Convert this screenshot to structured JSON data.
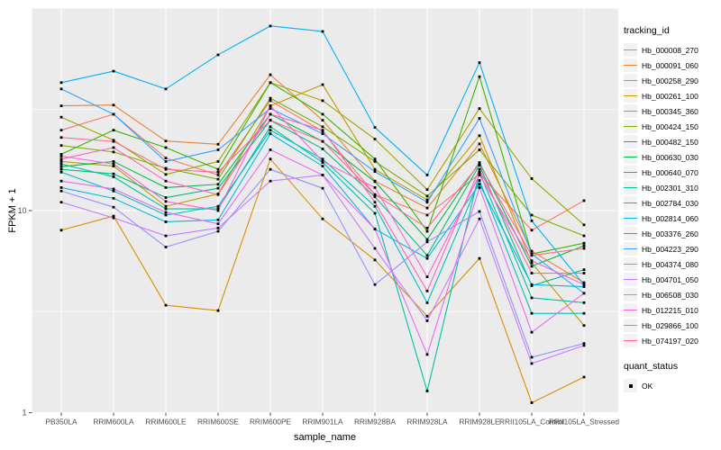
{
  "chart_data": {
    "type": "line",
    "title": "",
    "xlabel": "sample_name",
    "ylabel": "FPKM + 1",
    "y_scale": "log10",
    "ylim": [
      1,
      100
    ],
    "y_ticks": [
      10,
      1
    ],
    "y_minor_ticks": [
      3.162,
      31.62
    ],
    "grid": "on",
    "panel_bg": "#EBEBEB",
    "grid_color": "#FFFFFF",
    "tick_label_color": "#4D4D4D",
    "marker": "black-square",
    "legend_title": "tracking_id",
    "legend_position": "right",
    "x_categories": [
      "PB350LA",
      "RRIM600LA",
      "RRIM600LE",
      "RRIM600SE",
      "RRIM600PE",
      "RRIM901LA",
      "RRIM928BA",
      "RRIM928LA",
      "RRIM928LE",
      "RRII105LA_Control",
      "RRII105LA_Stressed"
    ],
    "series": [
      {
        "name": "Hb_000008_270",
        "color": "#F8766D",
        "values": [
          25,
          30,
          18.2,
          15,
          35,
          24.7,
          12,
          9.5,
          15.2,
          8.0,
          11.2
        ]
      },
      {
        "name": "Hb_000091_060",
        "color": "#EA8331",
        "values": [
          33,
          33.3,
          22.1,
          21.3,
          47,
          28,
          14,
          10.3,
          21.4,
          6.3,
          4.4
        ]
      },
      {
        "name": "Hb_000258_290",
        "color": "#D89000",
        "values": [
          8.0,
          9.4,
          3.4,
          3.2,
          18,
          9.1,
          5.7,
          3.0,
          5.8,
          1.12,
          1.5
        ]
      },
      {
        "name": "Hb_000261_100",
        "color": "#C09B00",
        "values": [
          17.5,
          16.6,
          10.5,
          12.1,
          33,
          42,
          16,
          11.3,
          23.5,
          5.5,
          2.7
        ]
      },
      {
        "name": "Hb_000345_360",
        "color": "#A3A500",
        "values": [
          29,
          22.3,
          15.1,
          17.5,
          43,
          35,
          22.6,
          12.7,
          32,
          14.4,
          8.5
        ]
      },
      {
        "name": "Hb_000424_150",
        "color": "#7CAE00",
        "values": [
          21,
          19.5,
          16.2,
          14.3,
          36,
          26,
          17.5,
          11.8,
          20,
          9.5,
          7.5
        ]
      },
      {
        "name": "Hb_000482_150",
        "color": "#39B600",
        "values": [
          19,
          25,
          20.5,
          16,
          43,
          30,
          18,
          7.9,
          46,
          6.1,
          6.9
        ]
      },
      {
        "name": "Hb_000630_030",
        "color": "#00BB4E",
        "values": [
          16.5,
          17.5,
          13,
          13.5,
          30,
          22,
          13.9,
          7.2,
          17.3,
          5.3,
          6.7
        ]
      },
      {
        "name": "Hb_000640_070",
        "color": "#00BF7D",
        "values": [
          16,
          15.2,
          11.6,
          12.9,
          28,
          20.2,
          11.7,
          6.0,
          16.8,
          4.25,
          5.1
        ]
      },
      {
        "name": "Hb_002301_310",
        "color": "#00C1A3",
        "values": [
          17,
          14.7,
          10.2,
          10.2,
          26,
          17.3,
          9.7,
          1.28,
          15.5,
          3.7,
          3.5
        ]
      },
      {
        "name": "Hb_002784_030",
        "color": "#00BFC4",
        "values": [
          15.5,
          12.5,
          9.5,
          10.5,
          25,
          18,
          10.5,
          3.5,
          14.1,
          3.1,
          3.1
        ]
      },
      {
        "name": "Hb_002814_060",
        "color": "#00BAE0",
        "values": [
          13,
          11.5,
          8.8,
          9.0,
          24,
          16.6,
          8.1,
          5.8,
          13.5,
          4.3,
          4.2
        ]
      },
      {
        "name": "Hb_003376_260",
        "color": "#00B0F6",
        "values": [
          43,
          49,
          40,
          59,
          82,
          77,
          25.8,
          15,
          54,
          8.9,
          4.3
        ]
      },
      {
        "name": "Hb_004223_290",
        "color": "#35A2FF",
        "values": [
          40,
          30,
          17.5,
          20,
          32,
          24,
          15.6,
          11.0,
          28.6,
          6.1,
          3.9
        ]
      },
      {
        "name": "Hb_004374_080",
        "color": "#9590FF",
        "values": [
          12.5,
          10.4,
          6.6,
          7.9,
          16,
          12.9,
          4.3,
          7.0,
          9.9,
          1.88,
          2.2
        ]
      },
      {
        "name": "Hb_004701_050",
        "color": "#C77CFF",
        "values": [
          11,
          9.2,
          7.5,
          8.2,
          14,
          15,
          6.5,
          2.85,
          9.1,
          1.75,
          2.15
        ]
      },
      {
        "name": "Hb_006508_030",
        "color": "#E76BF3",
        "values": [
          14,
          12.8,
          9.8,
          8.6,
          20,
          15,
          8.1,
          1.94,
          13,
          2.5,
          3.9
        ]
      },
      {
        "name": "Hb_012215_010",
        "color": "#FA62DB",
        "values": [
          18.6,
          17,
          11.1,
          10,
          33,
          17.5,
          13,
          4.7,
          15,
          5.65,
          4.3
        ]
      },
      {
        "name": "Hb_029866_100",
        "color": "#FF62BC",
        "values": [
          18,
          20.5,
          14,
          12,
          30,
          25,
          11,
          4.0,
          16,
          4.9,
          4.9
        ]
      },
      {
        "name": "Hb_074197_020",
        "color": "#FF6A98",
        "values": [
          23,
          22,
          16,
          15.5,
          28,
          22,
          12,
          8.2,
          17,
          6.0,
          6.5
        ]
      }
    ],
    "quant_legend": {
      "title": "quant_status",
      "items": [
        {
          "label": "OK",
          "marker": "black-square"
        }
      ]
    }
  }
}
